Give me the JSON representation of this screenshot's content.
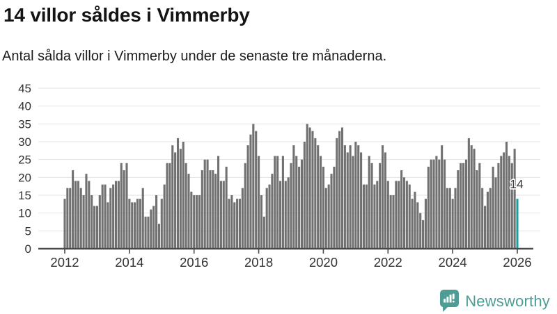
{
  "header": {
    "title": "14 villor såldes i Vimmerby",
    "subtitle": "Antal sålda villor i Vimmerby under de senaste tre månaderna."
  },
  "brand": {
    "name": "Newsworthy",
    "color": "#4e9c95",
    "icon": "bar-chart-speech-bubble"
  },
  "chart_data": {
    "type": "bar",
    "title": "14 villor såldes i Vimmerby",
    "subtitle": "Antal sålda villor i Vimmerby under de senaste tre månaderna.",
    "xlabel": "",
    "ylabel": "",
    "x_unit": "month",
    "x_start": "2012-01",
    "x_end": "2026-01",
    "x_tick_labels": [
      "2012",
      "2014",
      "2016",
      "2018",
      "2020",
      "2022",
      "2024",
      "2026"
    ],
    "y_ticks": [
      0,
      5,
      10,
      15,
      20,
      25,
      30,
      35,
      40,
      45
    ],
    "ylim": [
      0,
      45
    ],
    "grid": true,
    "legend": false,
    "bar_color": "#717171",
    "highlight_color": "#1aa2a2",
    "highlight_index": 168,
    "highlight_label": "14",
    "values": [
      14,
      17,
      17,
      22,
      19,
      19,
      17,
      15,
      21,
      19,
      15,
      12,
      12,
      15,
      18,
      18,
      13,
      17,
      18,
      19,
      19,
      24,
      22,
      24,
      14,
      13,
      13,
      14,
      14,
      17,
      9,
      9,
      11,
      12,
      15,
      7,
      14,
      18,
      24,
      24,
      29,
      27,
      31,
      28,
      30,
      24,
      21,
      16,
      15,
      15,
      15,
      22,
      25,
      25,
      22,
      22,
      21,
      26,
      19,
      19,
      23,
      14,
      15,
      13,
      14,
      14,
      17,
      24,
      29,
      32,
      35,
      33,
      26,
      15,
      9,
      17,
      18,
      21,
      26,
      26,
      19,
      26,
      19,
      20,
      24,
      29,
      26,
      23,
      25,
      30,
      35,
      34,
      33,
      31,
      29,
      26,
      23,
      17,
      18,
      21,
      23,
      31,
      33,
      34,
      29,
      27,
      29,
      26,
      30,
      29,
      27,
      18,
      18,
      26,
      24,
      18,
      19,
      24,
      29,
      27,
      19,
      15,
      15,
      19,
      19,
      22,
      20,
      19,
      18,
      14,
      16,
      13,
      10,
      8,
      14,
      23,
      25,
      25,
      26,
      25,
      29,
      25,
      17,
      17,
      14,
      17,
      22,
      24,
      24,
      25,
      31,
      29,
      28,
      22,
      24,
      17,
      12,
      16,
      17,
      23,
      20,
      24,
      26,
      27,
      30,
      26,
      24,
      28,
      14
    ]
  }
}
